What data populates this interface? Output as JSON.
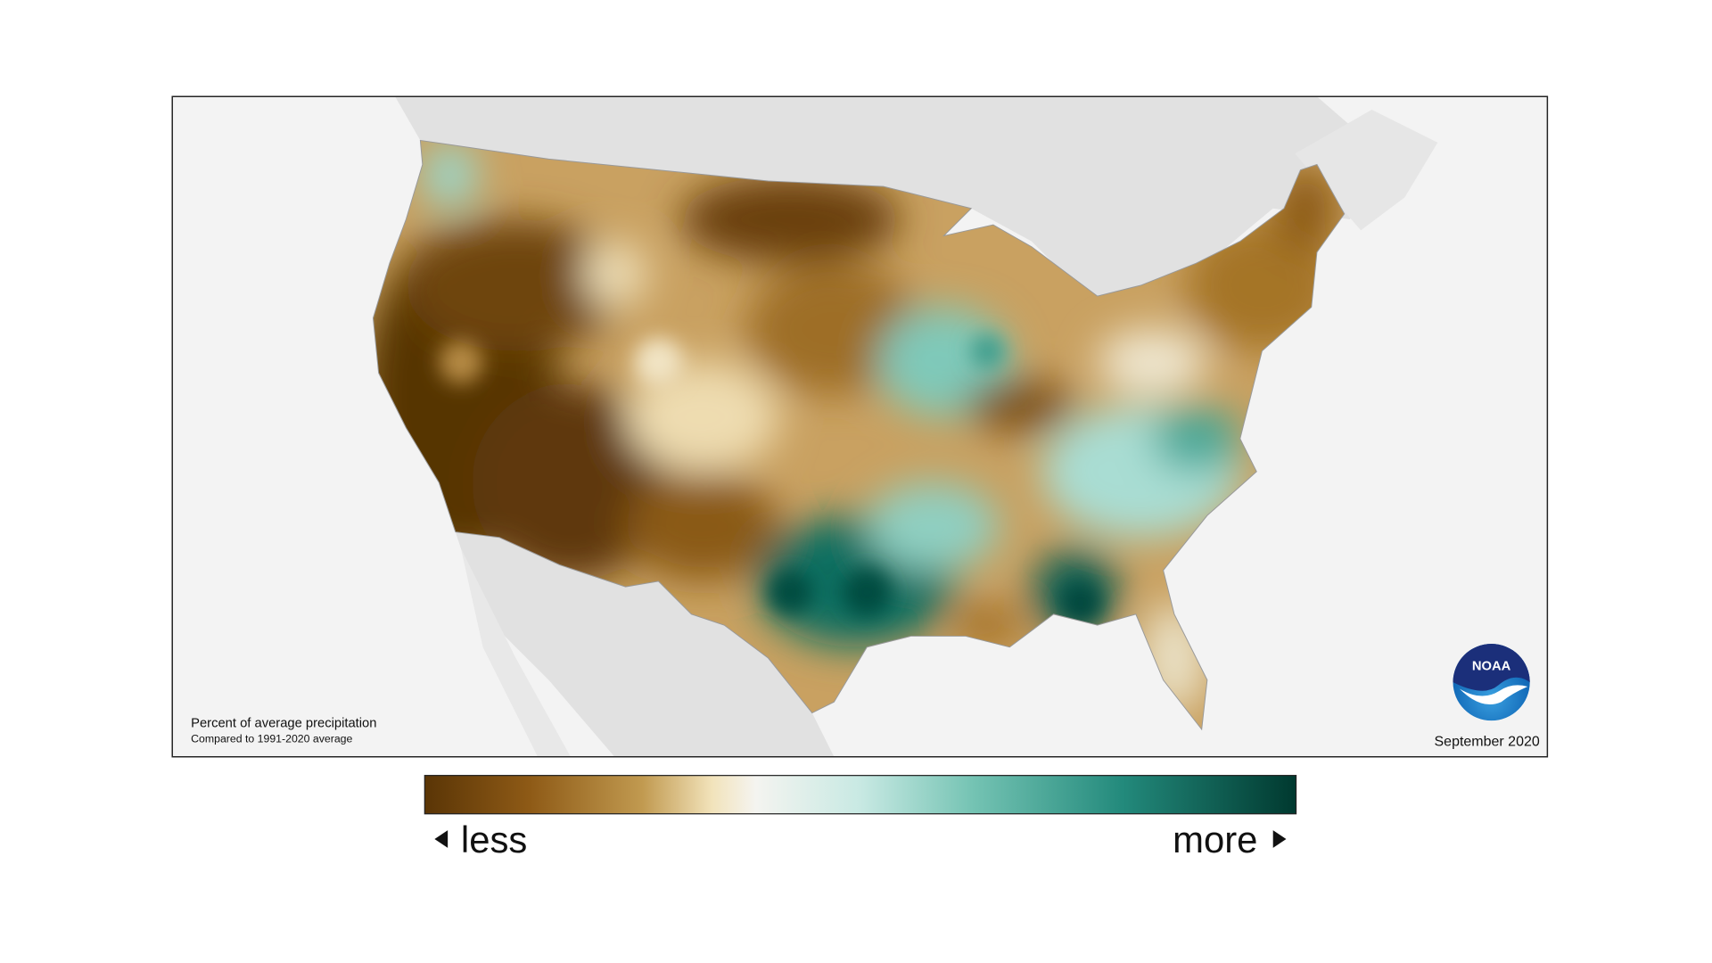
{
  "map": {
    "title": "Percent of average precipitation",
    "subtitle": "Compared to 1991-2020 average",
    "date": "September 2020"
  },
  "legend": {
    "low": "less",
    "high": "more"
  },
  "logo": {
    "text": "NOAA"
  }
}
